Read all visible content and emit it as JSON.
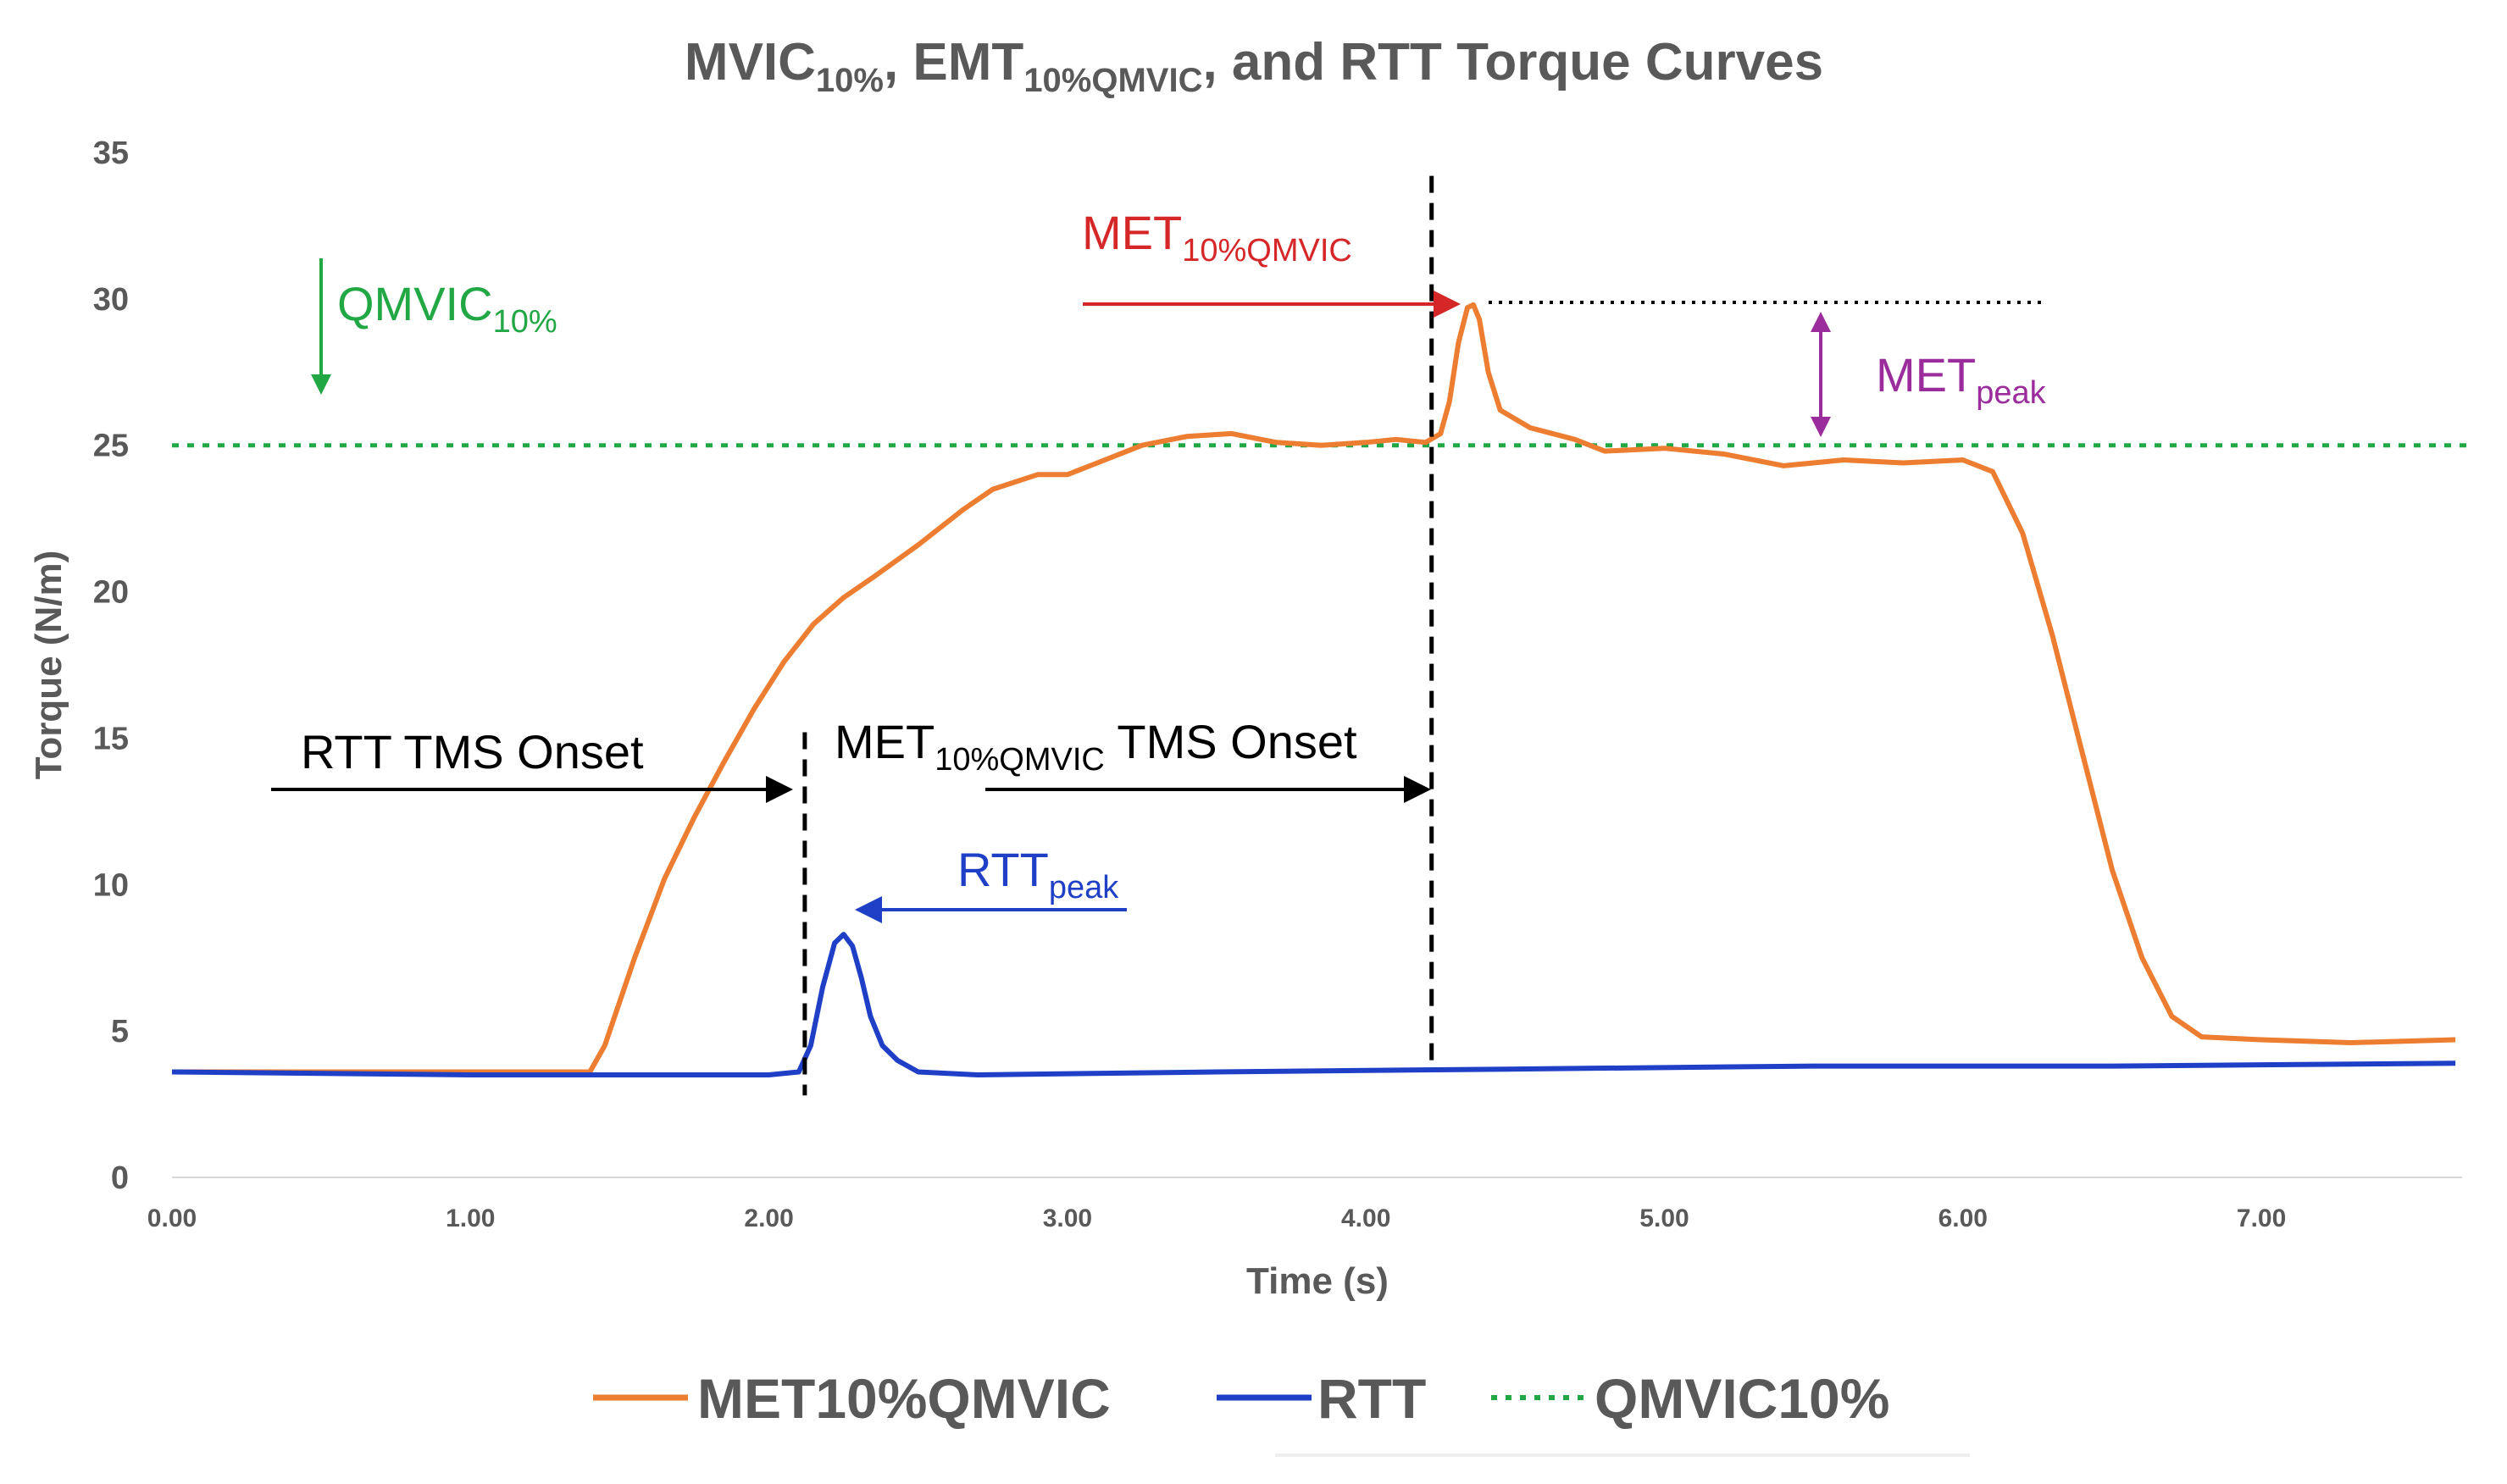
{
  "colors": {
    "met": "#ED7D31",
    "rtt": "#1F3FC7",
    "qmvic": "#22A745",
    "met_annot": "#D62728",
    "peak_annot": "#9B2C9B",
    "text": "#595959",
    "black": "#000000"
  },
  "chart_data": {
    "type": "line",
    "title": {
      "p1": "MVIC",
      "p1_sub": "10%",
      "p2": ", EMT",
      "p2_sub": "10%QMVIC",
      "p3": ", and RTT Torque Curves"
    },
    "xlabel": "Time (s)",
    "ylabel": "Torque (N/m)",
    "xlim": [
      0,
      7.7
    ],
    "ylim": [
      0,
      35
    ],
    "xticks": [
      {
        "v": 0,
        "label": "0.00"
      },
      {
        "v": 1,
        "label": "1.00"
      },
      {
        "v": 2,
        "label": "2.00"
      },
      {
        "v": 3,
        "label": "3.00"
      },
      {
        "v": 4,
        "label": "4.00"
      },
      {
        "v": 5,
        "label": "5.00"
      },
      {
        "v": 6,
        "label": "6.00"
      },
      {
        "v": 7,
        "label": "7.00"
      }
    ],
    "yticks": [
      {
        "v": 0,
        "label": "0"
      },
      {
        "v": 5,
        "label": "5"
      },
      {
        "v": 10,
        "label": "10"
      },
      {
        "v": 15,
        "label": "15"
      },
      {
        "v": 20,
        "label": "20"
      },
      {
        "v": 25,
        "label": "25"
      },
      {
        "v": 30,
        "label": "30"
      },
      {
        "v": 35,
        "label": "35"
      }
    ],
    "series": [
      {
        "name": "MET10%QMVIC",
        "key": "met",
        "x": [
          0,
          1.0,
          1.4,
          1.45,
          1.55,
          1.65,
          1.75,
          1.85,
          1.95,
          2.05,
          2.15,
          2.25,
          2.35,
          2.5,
          2.65,
          2.75,
          2.9,
          3.0,
          3.1,
          3.25,
          3.4,
          3.55,
          3.7,
          3.85,
          4.0,
          4.1,
          4.2,
          4.25,
          4.28,
          4.31,
          4.34,
          4.36,
          4.38,
          4.41,
          4.45,
          4.55,
          4.7,
          4.8,
          5.0,
          5.2,
          5.4,
          5.6,
          5.8,
          6.0,
          6.1,
          6.2,
          6.3,
          6.4,
          6.5,
          6.6,
          6.7,
          6.8,
          7.0,
          7.3,
          7.65
        ],
        "y": [
          3.6,
          3.6,
          3.6,
          4.5,
          7.5,
          10.2,
          12.3,
          14.2,
          16.0,
          17.6,
          18.9,
          19.8,
          20.5,
          21.6,
          22.8,
          23.5,
          24.0,
          24.0,
          24.4,
          25.0,
          25.3,
          25.4,
          25.1,
          25.0,
          25.1,
          25.2,
          25.1,
          25.4,
          26.5,
          28.5,
          29.7,
          29.8,
          29.3,
          27.5,
          26.2,
          25.6,
          25.2,
          24.8,
          24.9,
          24.7,
          24.3,
          24.5,
          24.4,
          24.5,
          24.1,
          22.0,
          18.5,
          14.5,
          10.5,
          7.5,
          5.5,
          4.8,
          4.7,
          4.6,
          4.7
        ]
      },
      {
        "name": "RTT",
        "key": "rtt",
        "x": [
          0,
          1.0,
          2.0,
          2.1,
          2.14,
          2.18,
          2.22,
          2.25,
          2.28,
          2.31,
          2.34,
          2.38,
          2.43,
          2.5,
          2.7,
          3.5,
          4.5,
          5.5,
          6.5,
          7.65
        ],
        "y": [
          3.6,
          3.5,
          3.5,
          3.6,
          4.5,
          6.5,
          8.0,
          8.3,
          7.9,
          6.8,
          5.5,
          4.5,
          4.0,
          3.6,
          3.5,
          3.6,
          3.7,
          3.8,
          3.8,
          3.9
        ]
      },
      {
        "name": "QMVIC10%",
        "key": "qmvic",
        "x": [
          0,
          7.7
        ],
        "y": [
          25,
          25
        ]
      }
    ],
    "annotations": {
      "qmvic": {
        "main": "QMVIC",
        "sub": "10%"
      },
      "met_top": {
        "main": "MET",
        "sub": "10%QMVIC"
      },
      "met_peak": {
        "main": "MET",
        "sub": "peak"
      },
      "rtt_onset": "RTT TMS Onset",
      "met_onset": {
        "main": "MET",
        "sub": "10%QMVIC",
        "tail": " TMS Onset"
      },
      "rtt_peak": {
        "main": "RTT",
        "sub": "peak"
      }
    },
    "onsets": [
      2.12,
      4.22
    ],
    "legend": [
      "MET10%QMVIC",
      "RTT",
      "QMVIC10%"
    ],
    "legend_position": "bottom"
  }
}
